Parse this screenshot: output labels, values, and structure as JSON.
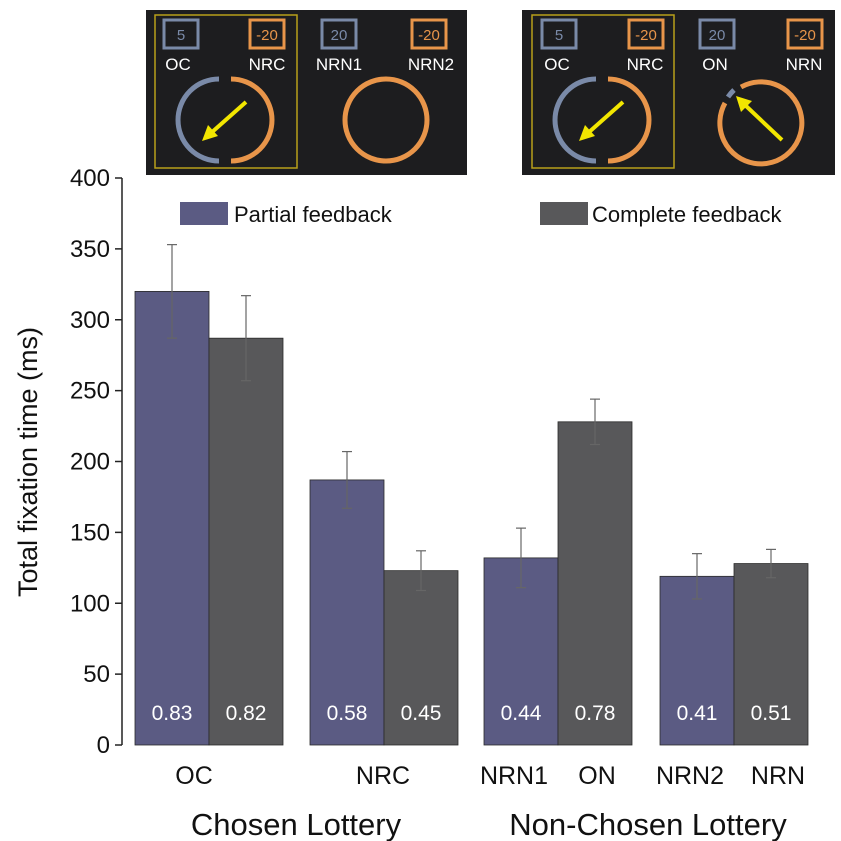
{
  "insets": {
    "partial": {
      "box_left": "5",
      "box_right": "-20",
      "label_left": "OC",
      "label_right": "NRC",
      "box2_left": "20",
      "box2_right": "-20",
      "label2_left": "NRN1",
      "label2_right": "NRN2"
    },
    "complete": {
      "box_left": "5",
      "box_right": "-20",
      "label_left": "OC",
      "label_right": "NRC",
      "box2_left": "20",
      "box2_right": "-20",
      "label2_left": "ON",
      "label2_right": "NRN"
    }
  },
  "colors": {
    "partial": "#5b5b83",
    "complete": "#58585a",
    "panel_bg": "#1d1d1f",
    "highlight": "#b8a01a",
    "blue_ring": "#7a8aa8",
    "orange_ring": "#e8954a",
    "arrow": "#f2e600"
  },
  "chart_data": {
    "type": "bar",
    "ylabel": "Total fixation time (ms)",
    "ylim": [
      0,
      400
    ],
    "yticks": [
      "0",
      "50",
      "100",
      "150",
      "200",
      "250",
      "300",
      "350",
      "400"
    ],
    "tick_labels": [
      "OC",
      "NRC",
      "NRN1",
      "ON",
      "NRN2",
      "NRN"
    ],
    "group_labels": [
      "Chosen Lottery",
      "Non-Chosen Lottery"
    ],
    "legend": [
      "Partial feedback",
      "Complete feedback"
    ],
    "series": [
      {
        "name": "Partial feedback",
        "values": [
          320,
          187,
          132,
          119
        ],
        "errors": [
          33,
          20,
          21,
          16
        ],
        "annotations": [
          "0.83",
          "0.58",
          "0.44",
          "0.41"
        ]
      },
      {
        "name": "Complete feedback",
        "values": [
          287,
          123,
          228,
          128
        ],
        "errors": [
          30,
          14,
          16,
          10
        ],
        "annotations": [
          "0.82",
          "0.45",
          "0.78",
          "0.51"
        ]
      }
    ]
  }
}
